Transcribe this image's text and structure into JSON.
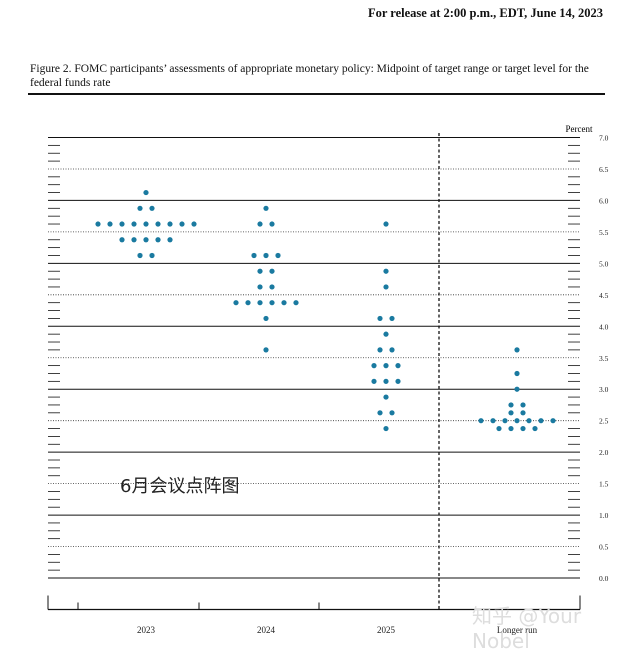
{
  "header": {
    "release_line": "For release at 2:00 p.m., EDT, June 14, 2023",
    "figure_caption": "Figure 2.  FOMC participants’ assessments of appropriate monetary policy:  Midpoint of target range or target level for the federal funds rate"
  },
  "watermark": {
    "text": "6月会议点阵图"
  },
  "credit": {
    "text": "知乎 @Your Nobel"
  },
  "chart_data": {
    "type": "scatter",
    "y_unit_label": "Percent",
    "ylim": [
      0.0,
      7.0
    ],
    "y_major_ticks": [
      0.0,
      0.5,
      1.0,
      1.5,
      2.0,
      2.5,
      3.0,
      3.5,
      4.0,
      4.5,
      5.0,
      5.5,
      6.0,
      6.5,
      7.0
    ],
    "y_tick_labels": [
      "0.0",
      "0.5",
      "1.0",
      "1.5",
      "2.0",
      "2.5",
      "3.0",
      "3.5",
      "4.0",
      "4.5",
      "5.0",
      "5.5",
      "6.0",
      "6.5",
      "7.0"
    ],
    "categories": [
      "2023",
      "2024",
      "2025",
      "Longer run"
    ],
    "dot_color": "#1a7aa0",
    "series": [
      {
        "category": "2023",
        "points": [
          {
            "y": 6.125,
            "count": 1
          },
          {
            "y": 5.875,
            "count": 2
          },
          {
            "y": 5.625,
            "count": 9
          },
          {
            "y": 5.375,
            "count": 5
          },
          {
            "y": 5.125,
            "count": 2
          }
        ]
      },
      {
        "category": "2024",
        "points": [
          {
            "y": 5.875,
            "count": 1
          },
          {
            "y": 5.625,
            "count": 2
          },
          {
            "y": 5.125,
            "count": 3
          },
          {
            "y": 4.875,
            "count": 2
          },
          {
            "y": 4.625,
            "count": 2
          },
          {
            "y": 4.375,
            "count": 6
          },
          {
            "y": 4.125,
            "count": 1
          },
          {
            "y": 3.625,
            "count": 1
          }
        ]
      },
      {
        "category": "2025",
        "points": [
          {
            "y": 5.625,
            "count": 1
          },
          {
            "y": 4.875,
            "count": 1
          },
          {
            "y": 4.625,
            "count": 1
          },
          {
            "y": 4.125,
            "count": 2
          },
          {
            "y": 3.875,
            "count": 1
          },
          {
            "y": 3.625,
            "count": 2
          },
          {
            "y": 3.375,
            "count": 3
          },
          {
            "y": 3.125,
            "count": 3
          },
          {
            "y": 2.875,
            "count": 1
          },
          {
            "y": 2.625,
            "count": 2
          },
          {
            "y": 2.375,
            "count": 1
          }
        ]
      },
      {
        "category": "Longer run",
        "points": [
          {
            "y": 3.625,
            "count": 1
          },
          {
            "y": 3.25,
            "count": 1
          },
          {
            "y": 3.0,
            "count": 1
          },
          {
            "y": 2.75,
            "count": 2
          },
          {
            "y": 2.625,
            "count": 2
          },
          {
            "y": 2.5,
            "count": 7
          },
          {
            "y": 2.375,
            "count": 4
          }
        ]
      }
    ]
  }
}
